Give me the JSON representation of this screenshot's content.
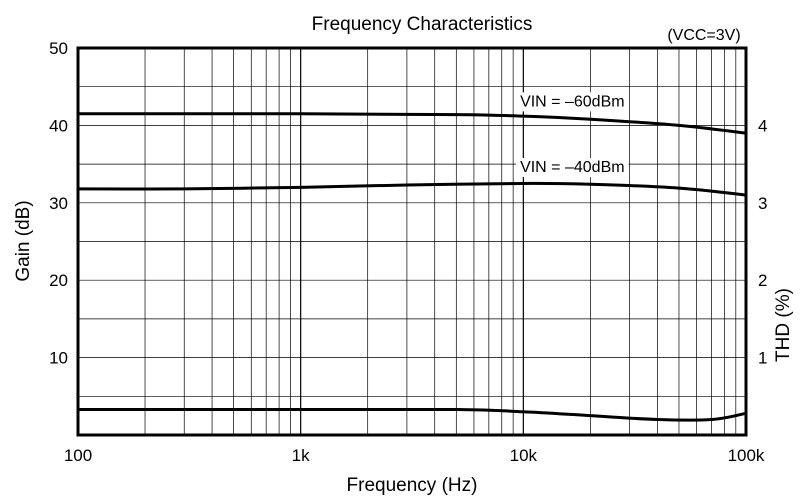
{
  "chart_data": {
    "type": "line",
    "title": "Frequency Characteristics",
    "condition_note": "(VCC=3V)",
    "xlabel": "Frequency (Hz)",
    "ylabel": "Gain (dB)",
    "y2label": "THD (%)",
    "x_scale": "log",
    "xlim": [
      100,
      100000
    ],
    "ylim": [
      0,
      50
    ],
    "y2lim": [
      0,
      5
    ],
    "grid": true,
    "x_ticks": [
      {
        "value": 100,
        "label": "100"
      },
      {
        "value": 1000,
        "label": "1k"
      },
      {
        "value": 10000,
        "label": "10k"
      },
      {
        "value": 100000,
        "label": "100k"
      }
    ],
    "y_ticks": [
      {
        "value": 10,
        "label": "10"
      },
      {
        "value": 20,
        "label": "20"
      },
      {
        "value": 30,
        "label": "30"
      },
      {
        "value": 40,
        "label": "40"
      },
      {
        "value": 50,
        "label": "50"
      }
    ],
    "y2_ticks": [
      {
        "value": 1,
        "label": "1"
      },
      {
        "value": 2,
        "label": "2"
      },
      {
        "value": 3,
        "label": "3"
      },
      {
        "value": 4,
        "label": "4"
      }
    ],
    "series": [
      {
        "name": "VIN = –60dBm",
        "axis": "left",
        "x": [
          100,
          1000,
          5000,
          10000,
          20000,
          50000,
          100000
        ],
        "y": [
          41.5,
          41.5,
          41.4,
          41.2,
          40.8,
          40.0,
          39.0
        ]
      },
      {
        "name": "VIN = –40dBm",
        "axis": "left",
        "x": [
          100,
          300,
          1000,
          3000,
          10000,
          20000,
          50000,
          100000
        ],
        "y": [
          31.8,
          31.8,
          32.0,
          32.3,
          32.5,
          32.4,
          31.9,
          31.0
        ]
      },
      {
        "name": "",
        "axis": "right",
        "x": [
          100,
          1000,
          5000,
          10000,
          20000,
          40000,
          70000,
          100000
        ],
        "y": [
          0.33,
          0.33,
          0.33,
          0.3,
          0.25,
          0.2,
          0.2,
          0.28
        ]
      }
    ]
  }
}
